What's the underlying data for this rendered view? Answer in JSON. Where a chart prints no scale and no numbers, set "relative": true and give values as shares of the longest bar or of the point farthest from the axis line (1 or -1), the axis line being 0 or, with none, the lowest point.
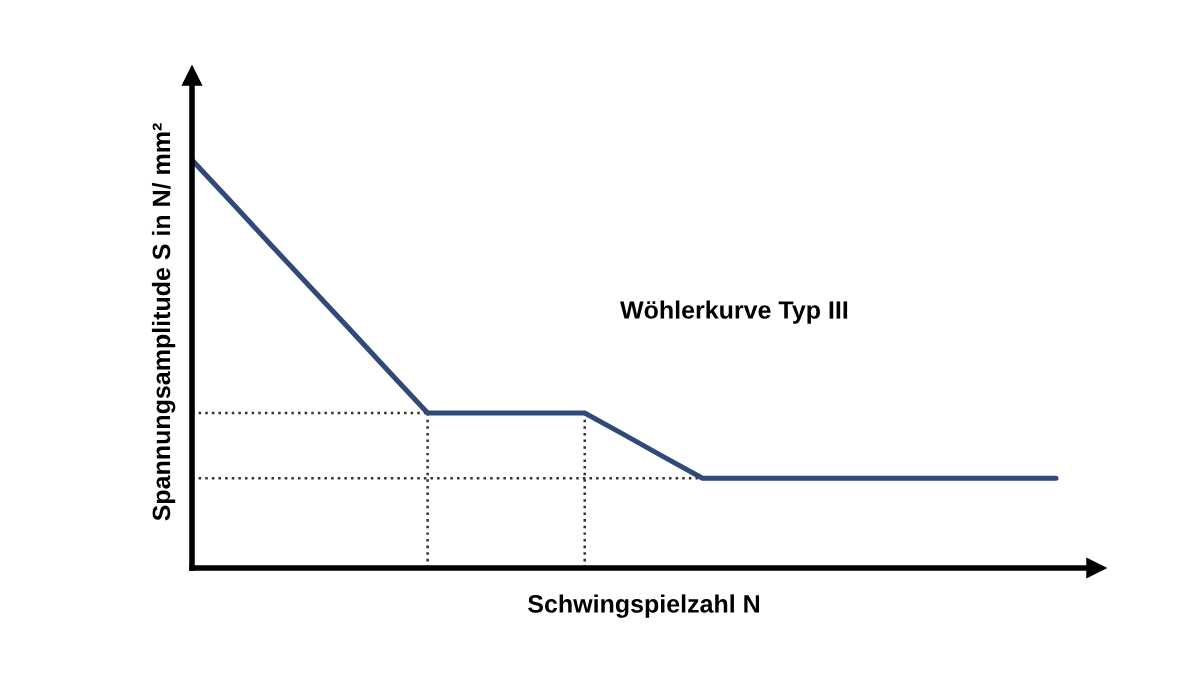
{
  "chart_data": {
    "type": "line",
    "relative": true,
    "xlabel": "Schwingspielzahl N",
    "ylabel": "Spannungsamplitude S in N/ mm²",
    "annotations": [
      "Wöhlerkurve Typ III"
    ],
    "categories": [
      null,
      null,
      null,
      null,
      null,
      null,
      null,
      null,
      null,
      null,
      null,
      null,
      null,
      null,
      null,
      null,
      null,
      null,
      null,
      null,
      null,
      null,
      null
    ],
    "series": [
      {
        "color": "#2f4a7a",
        "values": [
          1,
          0.897,
          0.793,
          0.69,
          0.587,
          0.483,
          0.38,
          0.38,
          0.38,
          0.38,
          0.38,
          0.327,
          0.273,
          0.22,
          0.22,
          0.22,
          0.22,
          0.22,
          0.22,
          0.22,
          0.22,
          0.22,
          0.22
        ]
      }
    ]
  }
}
